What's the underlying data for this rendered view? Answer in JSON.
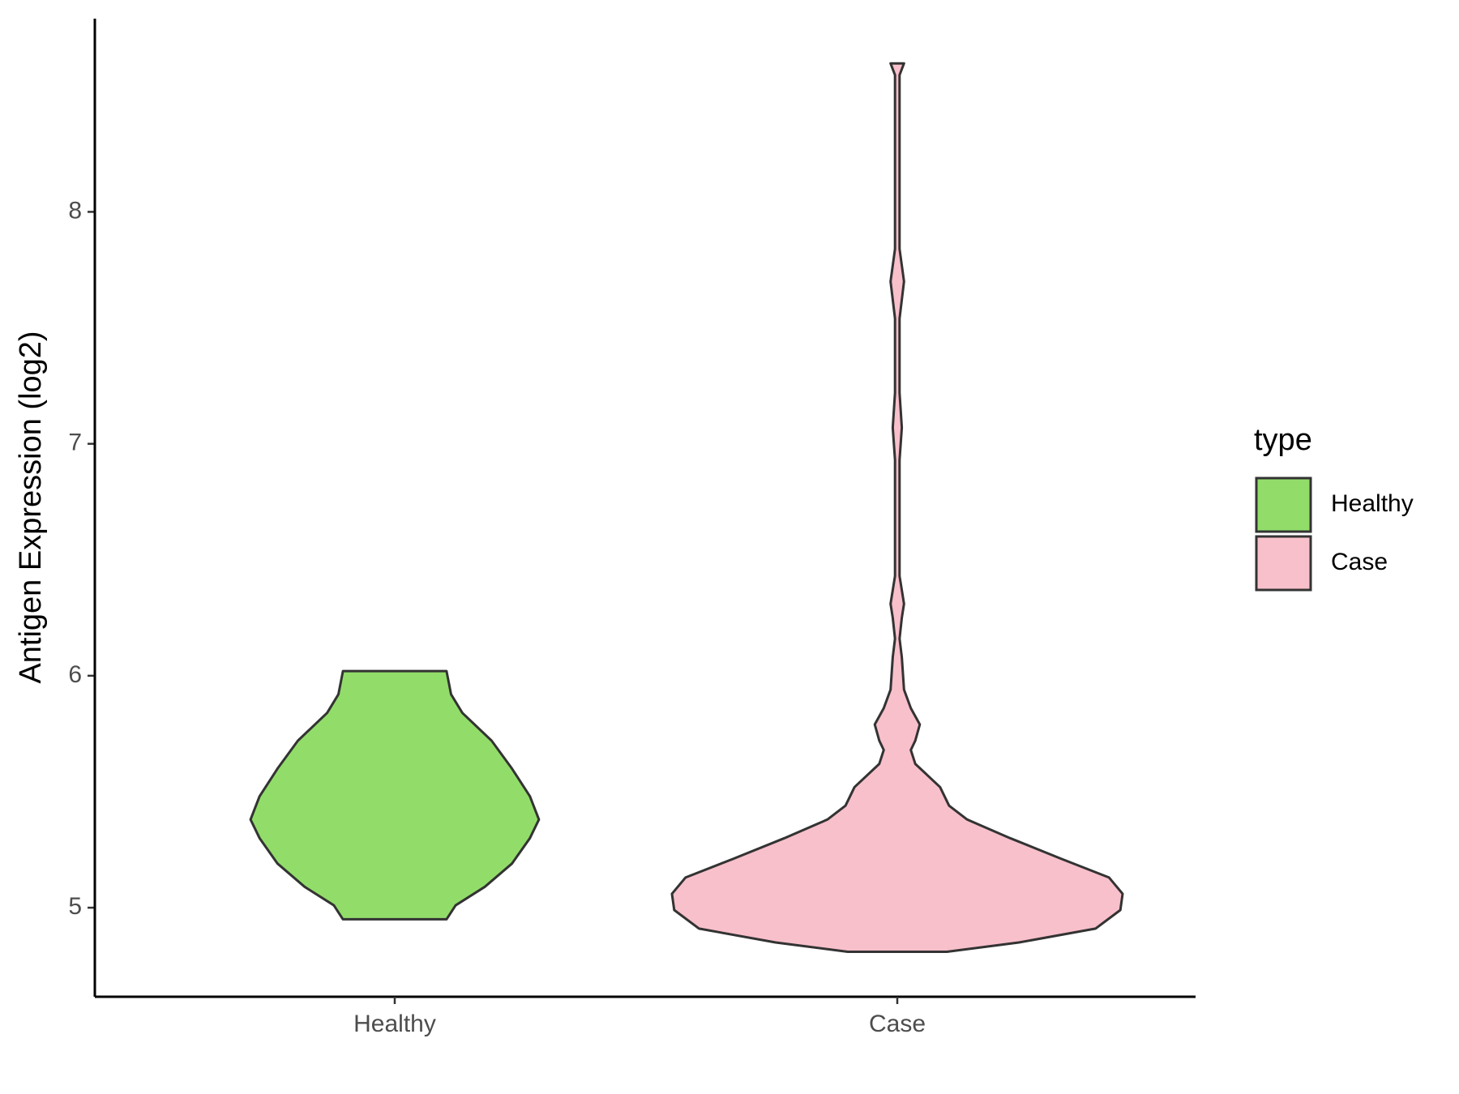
{
  "chart_data": {
    "type": "violin",
    "y_label": "Antigen Expression (log2)",
    "legend_title": "type",
    "categories": [
      "Healthy",
      "Case"
    ],
    "series": [
      {
        "name": "Healthy",
        "color": "#92dd6a",
        "y": [
          4.95,
          5.01,
          5.09,
          5.19,
          5.3,
          5.38,
          5.48,
          5.6,
          5.72,
          5.84,
          5.92,
          6.02
        ],
        "widths": [
          0.23,
          0.27,
          0.4,
          0.52,
          0.6,
          0.64,
          0.6,
          0.52,
          0.43,
          0.3,
          0.25,
          0.23
        ]
      },
      {
        "name": "Case",
        "color": "#f8c0cb",
        "y": [
          4.81,
          4.85,
          4.91,
          4.99,
          5.06,
          5.13,
          5.21,
          5.3,
          5.38,
          5.44,
          5.52,
          5.62,
          5.68,
          5.72,
          5.79,
          5.86,
          5.94,
          6.08,
          6.16,
          6.25,
          6.31,
          6.43,
          6.53,
          6.69,
          6.93,
          7.07,
          7.22,
          7.54,
          7.7,
          7.84,
          8.51,
          8.59,
          8.64
        ],
        "widths": [
          0.22,
          0.54,
          0.88,
          0.99,
          1.0,
          0.94,
          0.73,
          0.5,
          0.31,
          0.23,
          0.19,
          0.08,
          0.06,
          0.08,
          0.1,
          0.06,
          0.03,
          0.02,
          0.01,
          0.02,
          0.03,
          0.01,
          0.01,
          0.01,
          0.01,
          0.02,
          0.01,
          0.01,
          0.03,
          0.01,
          0.01,
          0.01,
          0.03
        ]
      }
    ],
    "ylim": [
      4.616,
      8.833
    ],
    "yticks": [
      5,
      6,
      7,
      8
    ]
  }
}
